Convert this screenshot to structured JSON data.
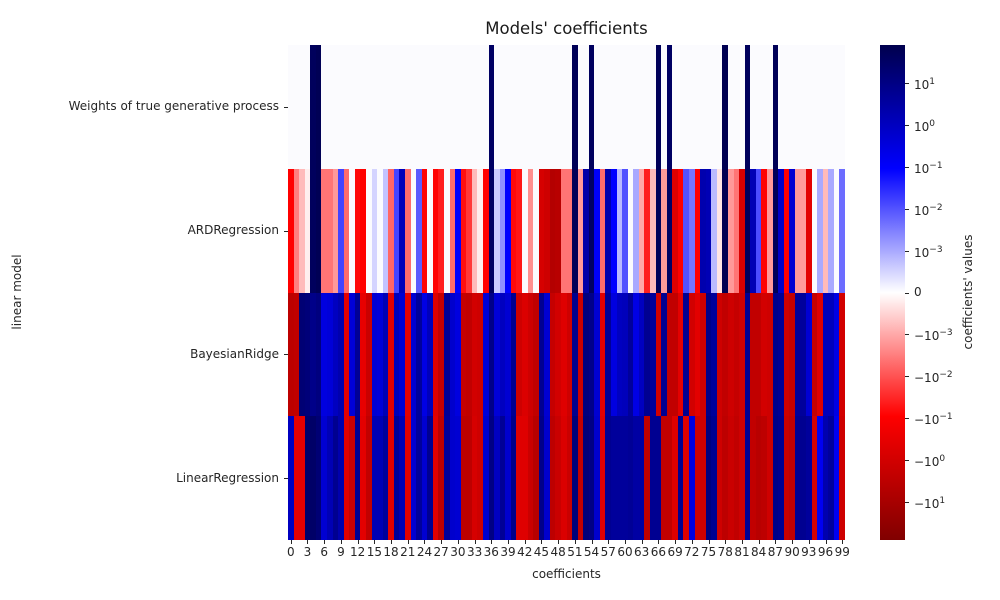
{
  "title": "Models' coefficients",
  "xlabel": "coefficients",
  "ylabel": "linear model",
  "colorbar": {
    "label": "coefficients' values",
    "ticks": [
      {
        "v": 10,
        "text": "10",
        "sup": "1"
      },
      {
        "v": 1,
        "text": "10",
        "sup": "0"
      },
      {
        "v": 0.1,
        "text": "10",
        "sup": "−1"
      },
      {
        "v": 0.01,
        "text": "10",
        "sup": "−2"
      },
      {
        "v": 0.001,
        "text": "10",
        "sup": "−3"
      },
      {
        "v": 0,
        "text": "0",
        "sup": ""
      },
      {
        "v": -0.001,
        "text": "−10",
        "sup": "−3"
      },
      {
        "v": -0.01,
        "text": "−10",
        "sup": "−2"
      },
      {
        "v": -0.1,
        "text": "−10",
        "sup": "−1"
      },
      {
        "v": -1,
        "text": "−10",
        "sup": "0"
      },
      {
        "v": -10,
        "text": "−10",
        "sup": "1"
      }
    ]
  },
  "chart_data": {
    "type": "heatmap",
    "title": "Models' coefficients",
    "xlabel": "coefficients",
    "ylabel": "linear model",
    "colormap": "seismic_r",
    "norm": {
      "type": "symlog",
      "linthresh": 0.001,
      "vmin": -80,
      "vmax": 80
    },
    "x_ticklabels": [
      "0",
      "3",
      "6",
      "9",
      "12",
      "15",
      "18",
      "21",
      "24",
      "27",
      "30",
      "33",
      "36",
      "39",
      "42",
      "45",
      "48",
      "51",
      "54",
      "57",
      "60",
      "63",
      "66",
      "69",
      "72",
      "75",
      "78",
      "81",
      "84",
      "87",
      "90",
      "93",
      "96",
      "99"
    ],
    "rows": [
      {
        "label": "Weights of true generative process",
        "values": [
          0,
          0,
          0,
          0,
          45,
          60,
          0,
          0,
          0,
          0,
          0,
          0,
          0,
          0,
          0,
          0,
          0,
          0,
          0,
          0,
          0,
          0,
          0,
          0,
          0,
          0,
          0,
          0,
          0,
          0,
          0,
          0,
          0,
          0,
          0,
          0,
          35,
          0,
          0,
          0,
          0,
          0,
          0,
          0,
          0,
          0,
          0,
          0,
          0,
          0,
          0,
          55,
          0,
          0,
          40,
          0,
          0,
          0,
          0,
          0,
          0,
          0,
          0,
          0,
          0,
          0,
          50,
          0,
          35,
          0,
          0,
          0,
          0,
          0,
          0,
          0,
          0,
          0,
          65,
          0,
          0,
          0,
          45,
          0,
          0,
          0,
          0,
          55,
          0,
          0,
          0,
          0,
          0,
          0,
          0,
          0,
          0,
          0,
          0,
          0
        ]
      },
      {
        "label": "ARDRegression",
        "values": [
          -0.09,
          -0.003,
          -0.0008,
          -0.0002,
          44,
          58,
          -0.004,
          -0.004,
          -0.0015,
          0.015,
          -0.005,
          0,
          -0.07,
          -0.09,
          0,
          0.0005,
          0,
          0.0007,
          -0.006,
          0.015,
          1.2,
          -0.005,
          0,
          0.008,
          -0.08,
          0,
          -0.08,
          -0.04,
          0,
          -0.005,
          0.09,
          -0.06,
          -0.02,
          -0.0008,
          -0.0002,
          -0.09,
          34,
          0.0006,
          0.002,
          0.09,
          -0.07,
          -0.05,
          0,
          -0.002,
          0,
          -0.8,
          -1.2,
          -5,
          -4,
          -0.004,
          -0.004,
          54,
          -0.0015,
          2.5,
          39,
          0.12,
          -0.005,
          2,
          0.09,
          0.0008,
          0.01,
          0,
          0.001,
          -0.001,
          -0.04,
          -0.0008,
          49,
          -0.0015,
          34,
          -0.5,
          -0.1,
          0.01,
          0.004,
          -0.09,
          2,
          1.5,
          0.0008,
          -0.0003,
          64,
          -0.0015,
          -0.004,
          -0.7,
          44,
          1.5,
          0.012,
          -0.08,
          -0.0015,
          54,
          0.7,
          -0.09,
          0.5,
          -0.0015,
          -0.0015,
          -0.4,
          0,
          0.001,
          -0.0008,
          0.001,
          0,
          0.005
        ]
      },
      {
        "label": "BayesianRidge",
        "values": [
          -3,
          -2.5,
          18,
          15,
          8,
          12,
          0.3,
          0.4,
          1,
          2,
          -0.4,
          0.4,
          5,
          -0.3,
          -1.5,
          0.5,
          0.4,
          1.5,
          -0.4,
          1.2,
          0.5,
          -0.35,
          0.5,
          4,
          0.25,
          1.2,
          -0.5,
          -2,
          5,
          0.6,
          0.3,
          -2,
          -2.5,
          -1,
          -1.2,
          0.4,
          8,
          0.4,
          1,
          0.5,
          6,
          -1.2,
          -0.6,
          -1.2,
          -2.5,
          6,
          0.5,
          -2,
          -1,
          -0.5,
          -1.2,
          7,
          -1.5,
          12,
          8,
          0.5,
          -0.4,
          5,
          0.3,
          1,
          1.2,
          4,
          0.25,
          1,
          6,
          4,
          -1,
          6,
          -2.5,
          -2.5,
          -0.4,
          6,
          -1,
          -0.4,
          -1.2,
          8,
          4,
          -1.2,
          -2.5,
          -1.2,
          -2,
          -1.2,
          6,
          -2.5,
          -2.5,
          -1,
          -1.2,
          7,
          5,
          -1.2,
          -2,
          4,
          4,
          0.5,
          -2,
          -0.5,
          1.2,
          1.2,
          0.25,
          -1
        ]
      },
      {
        "label": "LinearRegression",
        "values": [
          1,
          -0.3,
          -0.35,
          25,
          30,
          18,
          0.5,
          1.5,
          6,
          2,
          -0.4,
          -1.5,
          6,
          -0.4,
          -2.5,
          1.5,
          1.5,
          4,
          -0.4,
          4,
          1.5,
          -0.4,
          0.5,
          4,
          0.5,
          6,
          -0.4,
          -3,
          4,
          0.6,
          0.5,
          -3,
          -3,
          -0.8,
          -1.2,
          0.6,
          10,
          1,
          5,
          0.6,
          8,
          -0.5,
          -0.5,
          -1.5,
          -4,
          8,
          0.6,
          -3,
          -1.5,
          -0.6,
          -1.5,
          15,
          -2.5,
          15,
          10,
          0.6,
          -0.5,
          6,
          4,
          4,
          4,
          5,
          3,
          3,
          -2.5,
          6,
          6,
          -2.5,
          -2.5,
          -0.5,
          6,
          -0.5,
          0.3,
          -1.2,
          -1.2,
          12,
          6,
          -1.2,
          -3,
          -1.5,
          -2.5,
          -1.2,
          6,
          -2.5,
          -4,
          -3,
          -1.2,
          8,
          6,
          -1.5,
          -2.5,
          6,
          6,
          4,
          -0.8,
          0.15,
          2,
          4,
          0.15,
          -1.2
        ]
      }
    ]
  }
}
